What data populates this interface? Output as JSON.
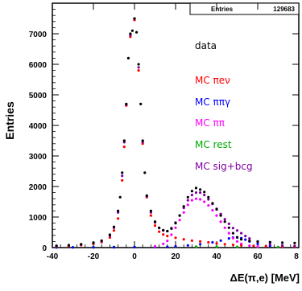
{
  "chart_data": {
    "type": "scatter",
    "title": "",
    "xlabel": "ΔE(π,e) [MeV]",
    "ylabel": "Entries",
    "xlim": [
      -40,
      80
    ],
    "ylim": [
      0,
      8000
    ],
    "x_ticks": [
      "-40",
      "-20",
      "0",
      "20",
      "40",
      "60",
      "8"
    ],
    "y_ticks": [
      "0",
      "1000",
      "2000",
      "3000",
      "4000",
      "5000",
      "6000",
      "7000"
    ],
    "stats_box": {
      "label": "Entries",
      "value": "129683"
    },
    "legend_position": "right",
    "series": [
      {
        "name": "data",
        "color": "#000000",
        "points": [
          [
            -38,
            60
          ],
          [
            -32,
            80
          ],
          [
            -26,
            110
          ],
          [
            -20,
            160
          ],
          [
            -16,
            230
          ],
          [
            -12,
            420
          ],
          [
            -10,
            680
          ],
          [
            -8,
            1200
          ],
          [
            -7,
            1650
          ],
          [
            -6,
            2450
          ],
          [
            -5,
            3500
          ],
          [
            -4,
            4700
          ],
          [
            -3,
            6200
          ],
          [
            -2,
            7000
          ],
          [
            -1,
            7100
          ],
          [
            0,
            7500
          ],
          [
            1,
            7050
          ],
          [
            2,
            6000
          ],
          [
            3,
            4700
          ],
          [
            4,
            3500
          ],
          [
            5,
            2450
          ],
          [
            6,
            1700
          ],
          [
            8,
            1200
          ],
          [
            10,
            850
          ],
          [
            12,
            650
          ],
          [
            14,
            570
          ],
          [
            16,
            540
          ],
          [
            18,
            620
          ],
          [
            20,
            800
          ],
          [
            22,
            1050
          ],
          [
            24,
            1350
          ],
          [
            26,
            1650
          ],
          [
            28,
            1850
          ],
          [
            30,
            1950
          ],
          [
            32,
            1900
          ],
          [
            34,
            1820
          ],
          [
            36,
            1650
          ],
          [
            38,
            1450
          ],
          [
            40,
            1250
          ],
          [
            42,
            1050
          ],
          [
            44,
            850
          ],
          [
            46,
            650
          ],
          [
            48,
            470
          ],
          [
            50,
            340
          ],
          [
            52,
            270
          ],
          [
            56,
            220
          ],
          [
            60,
            200
          ],
          [
            66,
            180
          ],
          [
            72,
            160
          ],
          [
            78,
            150
          ]
        ]
      },
      {
        "name": "MC πeν",
        "color": "#ff0000",
        "points": [
          [
            -38,
            40
          ],
          [
            -32,
            50
          ],
          [
            -26,
            80
          ],
          [
            -20,
            120
          ],
          [
            -16,
            180
          ],
          [
            -12,
            330
          ],
          [
            -10,
            560
          ],
          [
            -8,
            950
          ],
          [
            -6,
            2200
          ],
          [
            -5,
            3300
          ],
          [
            -4,
            4650
          ],
          [
            -2,
            6900
          ],
          [
            0,
            7450
          ],
          [
            2,
            5800
          ],
          [
            4,
            3400
          ],
          [
            6,
            1650
          ],
          [
            8,
            1050
          ],
          [
            10,
            720
          ],
          [
            12,
            520
          ],
          [
            14,
            430
          ],
          [
            16,
            380
          ],
          [
            20,
            320
          ],
          [
            24,
            270
          ],
          [
            28,
            230
          ],
          [
            32,
            200
          ],
          [
            36,
            170
          ],
          [
            40,
            140
          ],
          [
            44,
            110
          ],
          [
            48,
            90
          ],
          [
            52,
            70
          ],
          [
            58,
            55
          ],
          [
            64,
            45
          ],
          [
            72,
            35
          ],
          [
            78,
            30
          ]
        ]
      },
      {
        "name": "MC ππγ",
        "color": "#0000ff",
        "points": [
          [
            -38,
            5
          ],
          [
            -30,
            6
          ],
          [
            -20,
            8
          ],
          [
            -10,
            10
          ],
          [
            0,
            12
          ],
          [
            10,
            15
          ],
          [
            16,
            25
          ],
          [
            20,
            40
          ],
          [
            26,
            70
          ],
          [
            32,
            110
          ],
          [
            38,
            170
          ],
          [
            42,
            230
          ],
          [
            46,
            300
          ],
          [
            48,
            330
          ],
          [
            50,
            330
          ],
          [
            52,
            310
          ],
          [
            54,
            260
          ],
          [
            56,
            200
          ],
          [
            60,
            120
          ],
          [
            66,
            60
          ],
          [
            72,
            30
          ],
          [
            78,
            20
          ]
        ]
      },
      {
        "name": "MC ππ",
        "color": "#ff00ff",
        "points": [
          [
            10,
            40
          ],
          [
            14,
            120
          ],
          [
            16,
            220
          ],
          [
            18,
            420
          ],
          [
            20,
            650
          ],
          [
            22,
            900
          ],
          [
            24,
            1150
          ],
          [
            26,
            1400
          ],
          [
            28,
            1550
          ],
          [
            30,
            1600
          ],
          [
            32,
            1580
          ],
          [
            34,
            1500
          ],
          [
            36,
            1380
          ],
          [
            38,
            1220
          ],
          [
            40,
            1050
          ],
          [
            42,
            850
          ],
          [
            44,
            650
          ],
          [
            46,
            470
          ],
          [
            48,
            310
          ],
          [
            50,
            200
          ],
          [
            52,
            120
          ],
          [
            56,
            60
          ],
          [
            60,
            30
          ]
        ]
      },
      {
        "name": "MC rest",
        "color": "#00aa00",
        "points": [
          [
            -38,
            10
          ],
          [
            -30,
            12
          ],
          [
            -20,
            15
          ],
          [
            -10,
            20
          ],
          [
            0,
            25
          ],
          [
            10,
            28
          ],
          [
            20,
            30
          ],
          [
            30,
            30
          ],
          [
            40,
            28
          ],
          [
            50,
            25
          ],
          [
            60,
            20
          ],
          [
            70,
            18
          ],
          [
            78,
            15
          ]
        ]
      },
      {
        "name": "MC sig+bcg",
        "color": "#8000a0",
        "points": [
          [
            -38,
            55
          ],
          [
            -32,
            70
          ],
          [
            -26,
            100
          ],
          [
            -20,
            150
          ],
          [
            -16,
            210
          ],
          [
            -12,
            390
          ],
          [
            -10,
            650
          ],
          [
            -8,
            1150
          ],
          [
            -6,
            2350
          ],
          [
            -5,
            3450
          ],
          [
            -4,
            4680
          ],
          [
            -2,
            6950
          ],
          [
            0,
            7500
          ],
          [
            2,
            5900
          ],
          [
            4,
            3450
          ],
          [
            6,
            1680
          ],
          [
            8,
            1150
          ],
          [
            10,
            820
          ],
          [
            12,
            640
          ],
          [
            14,
            560
          ],
          [
            16,
            540
          ],
          [
            18,
            640
          ],
          [
            20,
            820
          ],
          [
            22,
            1050
          ],
          [
            24,
            1300
          ],
          [
            26,
            1550
          ],
          [
            28,
            1720
          ],
          [
            30,
            1800
          ],
          [
            32,
            1800
          ],
          [
            34,
            1720
          ],
          [
            36,
            1580
          ],
          [
            38,
            1430
          ],
          [
            40,
            1270
          ],
          [
            42,
            1100
          ],
          [
            44,
            930
          ],
          [
            46,
            780
          ],
          [
            48,
            640
          ],
          [
            50,
            560
          ],
          [
            52,
            470
          ],
          [
            54,
            380
          ],
          [
            56,
            300
          ],
          [
            60,
            190
          ],
          [
            66,
            110
          ],
          [
            72,
            70
          ],
          [
            78,
            55
          ]
        ]
      }
    ]
  }
}
